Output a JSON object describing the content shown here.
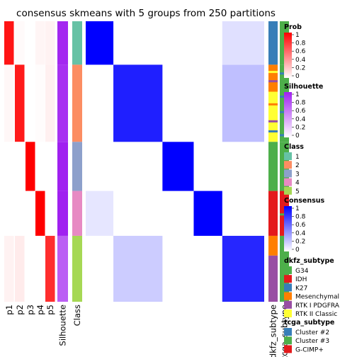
{
  "chart_data": {
    "type": "heatmap",
    "title": "consensus skmeans with 5 groups from 250 partitions",
    "column_labels": [
      "p1",
      "p2",
      "p3",
      "p4",
      "p5",
      "Silhouette",
      "Class",
      "dkfz_subtype",
      "tcga_subtype"
    ],
    "sample_groups": [
      {
        "class": "1",
        "fraction": 0.155,
        "prob": [
          0.92,
          0.02,
          0.0,
          0.04,
          0.05
        ],
        "silhouette": 0.97
      },
      {
        "class": "2",
        "fraction": 0.275,
        "prob": [
          0.03,
          0.9,
          0.0,
          0.01,
          0.06
        ],
        "silhouette": 0.93
      },
      {
        "class": "3",
        "fraction": 0.175,
        "prob": [
          0.0,
          0.0,
          1.0,
          0.0,
          0.0
        ],
        "silhouette": 1.0
      },
      {
        "class": "4",
        "fraction": 0.16,
        "prob": [
          0.0,
          0.0,
          0.0,
          1.0,
          0.0
        ],
        "silhouette": 1.0
      },
      {
        "class": "5",
        "fraction": 0.235,
        "prob": [
          0.05,
          0.08,
          0.0,
          0.0,
          0.82
        ],
        "silhouette": 0.72
      }
    ],
    "consensus_blocks": [
      {
        "rows": "1",
        "cols": "1",
        "value": 1.0
      },
      {
        "rows": "2",
        "cols": "2",
        "value": 0.88
      },
      {
        "rows": "3",
        "cols": "3",
        "value": 1.0
      },
      {
        "rows": "4",
        "cols": "4",
        "value": 1.0
      },
      {
        "rows": "5",
        "cols": "5",
        "value": 0.85
      },
      {
        "rows": "2",
        "cols": "5",
        "value": 0.25
      },
      {
        "rows": "5",
        "cols": "2",
        "value": 0.2
      },
      {
        "rows": "1",
        "cols": "5",
        "value": 0.12
      },
      {
        "rows": "4",
        "cols": "1",
        "value": 0.1
      }
    ],
    "legends": [
      {
        "title": "Prob",
        "type": "continuous",
        "ticks": [
          "1",
          "0.8",
          "0.6",
          "0.4",
          "0.2",
          "0"
        ],
        "colors": [
          "#ff0000",
          "#ffffff"
        ]
      },
      {
        "title": "Silhouette",
        "type": "continuous",
        "ticks": [
          "1",
          "0.8",
          "0.6",
          "0.4",
          "0.2",
          "0"
        ],
        "colors": [
          "#a020f0",
          "#ffffff"
        ]
      },
      {
        "title": "Class",
        "type": "discrete",
        "entries": [
          {
            "label": "1",
            "color": "#66c2a5"
          },
          {
            "label": "2",
            "color": "#fc8d62"
          },
          {
            "label": "3",
            "color": "#8da0cb"
          },
          {
            "label": "4",
            "color": "#e78ac3"
          },
          {
            "label": "5",
            "color": "#a6d854"
          }
        ]
      },
      {
        "title": "Consensus",
        "type": "continuous",
        "ticks": [
          "1",
          "0.8",
          "0.6",
          "0.4",
          "0.2",
          "0"
        ],
        "colors": [
          "#0000ff",
          "#ffffff"
        ]
      },
      {
        "title": "dkfz_subtype",
        "type": "discrete",
        "entries": [
          {
            "label": "G34",
            "color": "#4daf4a"
          },
          {
            "label": "IDH",
            "color": "#e41a1c"
          },
          {
            "label": "K27",
            "color": "#377eb8"
          },
          {
            "label": "Mesenchymal",
            "color": "#ff7f00"
          },
          {
            "label": "RTK I PDGFRA",
            "color": "#984ea3"
          },
          {
            "label": "RTK II Classic",
            "color": "#ffff33"
          }
        ]
      },
      {
        "title": "tcga_subtype",
        "type": "discrete",
        "entries": [
          {
            "label": "Cluster #2",
            "color": "#377eb8"
          },
          {
            "label": "Cluster #3",
            "color": "#4daf4a"
          },
          {
            "label": "G-CIMP+",
            "color": "#e41a1c"
          }
        ]
      }
    ]
  }
}
